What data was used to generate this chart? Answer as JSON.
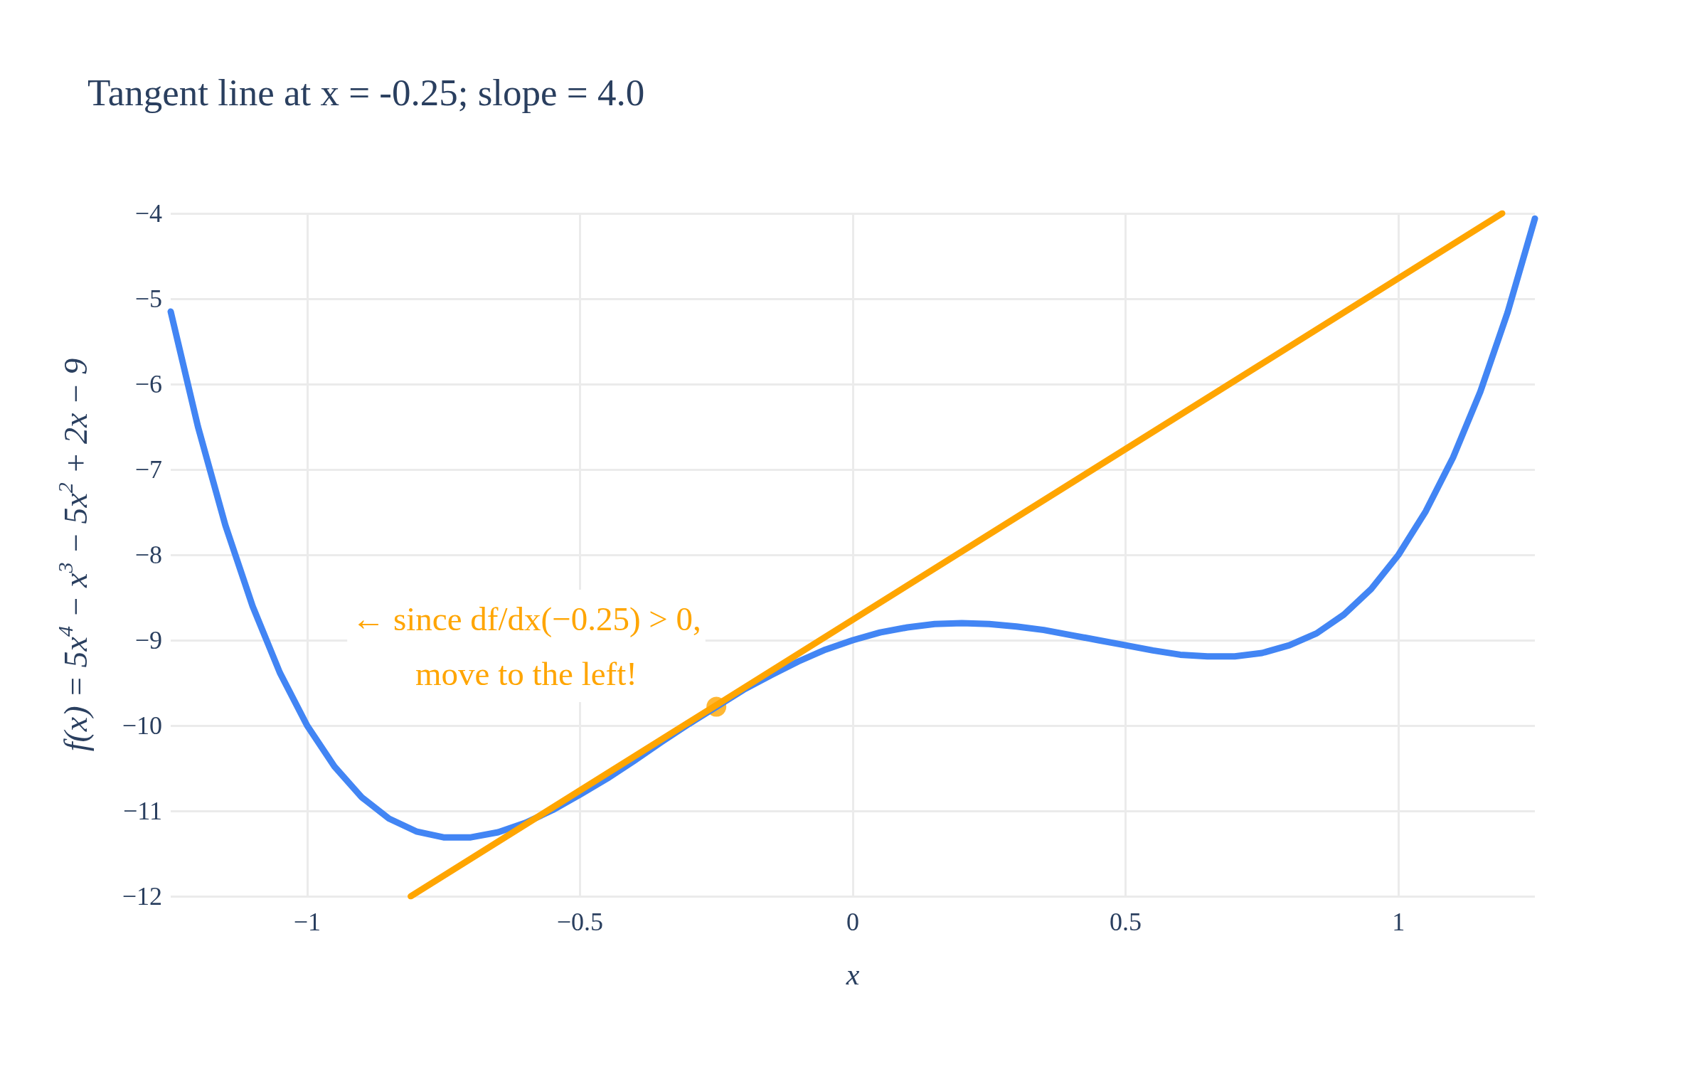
{
  "chart_data": {
    "type": "line",
    "title": "Tangent line at x = -0.25; slope = 4.0",
    "xlabel": "x",
    "ylabel": "f(x) = 5x$^{4}$ − x$^{3}$ − 5x$^{2}$ + 2x − 9",
    "annotations": [
      "← since df/dx(−0.25) > 0,\nmove to the left!"
    ],
    "xlim": [
      -1.25,
      1.25
    ],
    "ylim": [
      -12,
      -4
    ],
    "xticks": [
      {
        "value": -1,
        "label": "−1"
      },
      {
        "value": -0.5,
        "label": "−0.5"
      },
      0,
      0.5,
      1
    ],
    "yticks": [
      {
        "value": -12,
        "label": "−12"
      },
      {
        "value": -11,
        "label": "−11"
      },
      {
        "value": -10,
        "label": "−10"
      },
      {
        "value": -9,
        "label": "−9"
      },
      {
        "value": -8,
        "label": "−8"
      },
      {
        "value": -7,
        "label": "−7"
      },
      {
        "value": -6,
        "label": "−6"
      },
      {
        "value": -5,
        "label": "−5"
      },
      {
        "value": -4,
        "label": "−4"
      }
    ],
    "grid": true,
    "series": [
      {
        "color": "#4285f4",
        "x": [
          -1.25,
          -1.2,
          -1.15,
          -1.1,
          -1.05,
          -1,
          -0.95,
          -0.9,
          -0.85,
          -0.8,
          -0.75,
          -0.7,
          -0.65,
          -0.6,
          -0.55,
          -0.5,
          -0.45,
          -0.4,
          -0.35,
          -0.3,
          -0.25,
          -0.2,
          -0.15,
          -0.1,
          -0.05,
          0,
          0.05,
          0.1,
          0.15,
          0.2,
          0.25,
          0.3,
          0.35,
          0.4,
          0.45,
          0.5,
          0.55,
          0.6,
          0.65,
          0.7,
          0.75,
          0.8,
          0.85,
          0.9,
          0.95,
          1,
          1.05,
          1.1,
          1.15,
          1.2,
          1.25
        ],
        "values": [
          -5.15,
          -6.5,
          -7.65,
          -8.6,
          -9.38,
          -10,
          -10.48,
          -10.84,
          -11.09,
          -11.24,
          -11.31,
          -11.31,
          -11.25,
          -11.14,
          -10.99,
          -10.81,
          -10.62,
          -10.41,
          -10.19,
          -9.98,
          -9.78,
          -9.58,
          -9.41,
          -9.25,
          -9.11,
          -9,
          -8.91,
          -8.85,
          -8.81,
          -8.8,
          -8.81,
          -8.84,
          -8.88,
          -8.94,
          -9,
          -9.06,
          -9.12,
          -9.17,
          -9.19,
          -9.19,
          -9.15,
          -9.06,
          -8.92,
          -8.7,
          -8.4,
          -8,
          -7.49,
          -6.86,
          -6.09,
          -5.16,
          -4.06
        ]
      },
      {
        "color": "#ffa500",
        "x": [
          -0.81,
          1.19
        ],
        "values": [
          -12,
          -4
        ]
      },
      {
        "type": "scatter",
        "color": "#ffa500",
        "marker": "circle",
        "x": [
          -0.25
        ],
        "values": [
          -9.78
        ]
      }
    ]
  }
}
